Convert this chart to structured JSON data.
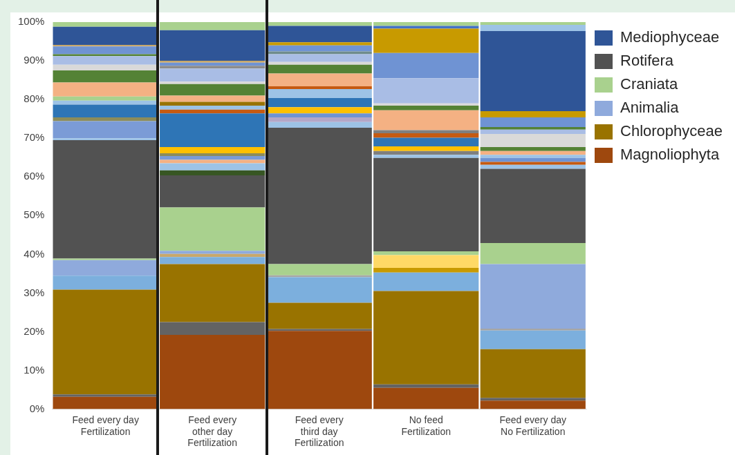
{
  "chart_data": {
    "type": "bar",
    "stacked": true,
    "legend": "right",
    "categories": [
      "Feed every day\nFertilization",
      "Feed every\nother day\nFertilization",
      "Feed every\nthird day\nFertilization",
      "No feed\nFertilization",
      "Feed every day\nNo Fertilization"
    ],
    "ylim": [
      0,
      100
    ],
    "yticks": [
      {
        "value": 0,
        "label": "0%"
      },
      {
        "value": 10,
        "label": "10%"
      },
      {
        "value": 20,
        "label": "20%"
      },
      {
        "value": 30,
        "label": "30%"
      },
      {
        "value": 40,
        "label": "40%"
      },
      {
        "value": 50,
        "label": "50%"
      },
      {
        "value": 60,
        "label": "60%"
      },
      {
        "value": 70,
        "label": "70%"
      },
      {
        "value": 80,
        "label": "80%"
      },
      {
        "value": 90,
        "label": "90%"
      },
      {
        "value": 100,
        "label": "100%"
      }
    ],
    "grid": false,
    "series": [
      {
        "name": "Magnoliophyta",
        "color": "#9e480e",
        "values": [
          3.2,
          19.2,
          20.2,
          5.5,
          2.2
        ]
      },
      {
        "color": "#636363",
        "values": [
          0.6,
          3.3,
          0.5,
          0.9,
          0.7
        ]
      },
      {
        "name": "Chlorophyceae",
        "color": "#997300",
        "values": [
          27.1,
          15.0,
          6.8,
          24.1,
          12.6
        ]
      },
      {
        "color": "#7cafdd",
        "values": [
          3.6,
          1.8,
          6.6,
          4.8,
          4.8
        ]
      },
      {
        "color": "#c9a86a",
        "values": [
          null,
          0.8,
          null,
          null,
          null
        ]
      },
      {
        "color": "#a5a5a5",
        "values": [
          null,
          null,
          0.5,
          null,
          0.5
        ]
      },
      {
        "color": "#c89a00",
        "values": [
          null,
          null,
          null,
          1.2,
          null
        ]
      },
      {
        "color": "#ffd966",
        "values": [
          null,
          null,
          null,
          3.3,
          null
        ]
      },
      {
        "name": "Animalia",
        "color": "#8faadc",
        "values": [
          4.0,
          0.8,
          null,
          null,
          16.7
        ]
      },
      {
        "name": "Craniata",
        "color": "#a9d18e",
        "values": [
          0.4,
          11.2,
          2.9,
          1.0,
          5.4
        ]
      },
      {
        "name": "Rotifera",
        "color": "#525252",
        "values": [
          30.6,
          8.3,
          35.2,
          24.1,
          19.2
        ]
      },
      {
        "color": "#9dc3e6",
        "values": [
          0.5,
          null,
          null,
          null,
          null
        ]
      },
      {
        "color": "#7b9bd6",
        "values": [
          4.4,
          null,
          null,
          null,
          null
        ]
      },
      {
        "color": "#8c8c5a",
        "values": [
          1.0,
          null,
          null,
          null,
          null
        ]
      },
      {
        "color": "#2e75b6",
        "values": [
          3.3,
          null,
          null,
          null,
          null
        ]
      },
      {
        "color": "#9dc3e6",
        "values": [
          1.0,
          null,
          null,
          null,
          null
        ]
      },
      {
        "color": "#a9d18e",
        "values": [
          1.1,
          null,
          null,
          null,
          null
        ]
      },
      {
        "color": "#f4b183",
        "values": [
          3.6,
          null,
          null,
          null,
          null
        ]
      },
      {
        "color": "#548235",
        "values": [
          3.1,
          null,
          null,
          null,
          null
        ]
      },
      {
        "color": "#d9d9d9",
        "values": [
          1.5,
          null,
          null,
          null,
          null
        ]
      },
      {
        "color": "#a9bde5",
        "values": [
          2.2,
          null,
          null,
          null,
          null
        ]
      },
      {
        "color": "#548235",
        "values": [
          0.5,
          null,
          null,
          null,
          null
        ]
      },
      {
        "color": "#6f93d3",
        "values": [
          2.0,
          null,
          null,
          null,
          null
        ]
      },
      {
        "color": "#c9a86a",
        "values": [
          0.4,
          null,
          null,
          null,
          null
        ]
      },
      {
        "color": "#375623",
        "values": [
          null,
          1.3,
          null,
          null,
          null
        ]
      },
      {
        "color": "#9dc3e6",
        "values": [
          null,
          1.8,
          null,
          null,
          null
        ]
      },
      {
        "color": "#f4b183",
        "values": [
          null,
          0.9,
          null,
          null,
          null
        ]
      },
      {
        "color": "#7b9bd6",
        "values": [
          null,
          1.0,
          null,
          null,
          null
        ]
      },
      {
        "color": "#8c8c5a",
        "values": [
          null,
          0.7,
          null,
          null,
          null
        ]
      },
      {
        "color": "#ffc000",
        "values": [
          null,
          1.6,
          null,
          null,
          null
        ]
      },
      {
        "color": "#2e75b6",
        "values": [
          null,
          8.7,
          null,
          null,
          null
        ]
      },
      {
        "color": "#c55a11",
        "values": [
          null,
          1.0,
          null,
          null,
          null
        ]
      },
      {
        "color": "#9dc3e6",
        "values": [
          null,
          1.0,
          null,
          null,
          null
        ]
      },
      {
        "color": "#997300",
        "values": [
          null,
          1.0,
          null,
          null,
          null
        ]
      },
      {
        "color": "#f4b183",
        "values": [
          null,
          1.6,
          null,
          null,
          null
        ]
      },
      {
        "color": "#548235",
        "values": [
          null,
          3.0,
          null,
          null,
          null
        ]
      },
      {
        "color": "#d9d9d9",
        "values": [
          null,
          0.6,
          null,
          null,
          null
        ]
      },
      {
        "color": "#a9bde5",
        "values": [
          null,
          3.4,
          null,
          null,
          null
        ]
      },
      {
        "color": "#8c8c8c",
        "values": [
          null,
          0.7,
          null,
          null,
          null
        ]
      },
      {
        "color": "#6f93d3",
        "values": [
          null,
          0.8,
          null,
          null,
          null
        ]
      },
      {
        "color": "#c9a86a",
        "values": [
          null,
          0.5,
          null,
          null,
          null
        ]
      },
      {
        "color": "#9dc3e6",
        "values": [
          null,
          null,
          1.5,
          null,
          null
        ]
      },
      {
        "color": "#b4a7c8",
        "values": [
          null,
          null,
          1.2,
          null,
          null
        ]
      },
      {
        "color": "#6f93d3",
        "values": [
          null,
          null,
          1.0,
          null,
          null
        ]
      },
      {
        "color": "#ffc000",
        "values": [
          null,
          null,
          1.6,
          null,
          null
        ]
      },
      {
        "color": "#2e75b6",
        "values": [
          null,
          null,
          2.4,
          null,
          null
        ]
      },
      {
        "color": "#9dc3e6",
        "values": [
          null,
          null,
          2.3,
          null,
          null
        ]
      },
      {
        "color": "#c55a11",
        "values": [
          null,
          null,
          0.7,
          null,
          null
        ]
      },
      {
        "color": "#f4b183",
        "values": [
          null,
          null,
          3.3,
          null,
          null
        ]
      },
      {
        "color": "#548235",
        "values": [
          null,
          null,
          2.3,
          null,
          null
        ]
      },
      {
        "color": "#d9d9d9",
        "values": [
          null,
          null,
          0.7,
          null,
          null
        ]
      },
      {
        "color": "#a9bde5",
        "values": [
          null,
          null,
          2.0,
          null,
          null
        ]
      },
      {
        "color": "#6f8c8c",
        "values": [
          null,
          null,
          0.7,
          null,
          null
        ]
      },
      {
        "color": "#6f93d3",
        "values": [
          null,
          null,
          1.6,
          null,
          null
        ]
      },
      {
        "color": "#c89a00",
        "values": [
          null,
          null,
          0.8,
          null,
          null
        ]
      },
      {
        "color": "#9dc3e6",
        "values": [
          null,
          null,
          null,
          0.8,
          null
        ]
      },
      {
        "color": "#7f7f7f",
        "values": [
          null,
          null,
          null,
          1.0,
          null
        ]
      },
      {
        "color": "#ffc000",
        "values": [
          null,
          null,
          null,
          1.2,
          null
        ]
      },
      {
        "color": "#2e75b6",
        "values": [
          null,
          null,
          null,
          2.2,
          null
        ]
      },
      {
        "color": "#c55a11",
        "values": [
          null,
          null,
          null,
          1.2,
          null
        ]
      },
      {
        "color": "#7f7f7f",
        "values": [
          null,
          null,
          null,
          0.8,
          null
        ]
      },
      {
        "color": "#f4b183",
        "values": [
          null,
          null,
          null,
          5.1,
          null
        ]
      },
      {
        "color": "#548235",
        "values": [
          null,
          null,
          null,
          1.2,
          null
        ]
      },
      {
        "color": "#d9d9d9",
        "values": [
          null,
          null,
          null,
          0.6,
          null
        ]
      },
      {
        "color": "#a9bde5",
        "values": [
          null,
          null,
          null,
          6.5,
          null
        ]
      },
      {
        "color": "#6f93d3",
        "values": [
          null,
          null,
          null,
          6.5,
          null
        ]
      },
      {
        "color": "#c89a00",
        "values": [
          null,
          null,
          null,
          6.3,
          null
        ]
      },
      {
        "color": "#4472c4",
        "values": [
          null,
          null,
          null,
          0.7,
          null
        ]
      },
      {
        "color": "#9dc3e6",
        "values": [
          null,
          null,
          null,
          null,
          1.0
        ]
      },
      {
        "color": "#c55a11",
        "values": [
          null,
          null,
          null,
          null,
          0.8
        ]
      },
      {
        "color": "#6f93d3",
        "values": [
          null,
          null,
          null,
          null,
          1.0
        ]
      },
      {
        "color": "#9dc3e6",
        "values": [
          null,
          null,
          null,
          null,
          0.8
        ]
      },
      {
        "color": "#f4b183",
        "values": [
          null,
          null,
          null,
          null,
          1.0
        ]
      },
      {
        "color": "#548235",
        "values": [
          null,
          null,
          null,
          null,
          1.0
        ]
      },
      {
        "color": "#d9d9d9",
        "values": [
          null,
          null,
          null,
          null,
          3.4
        ]
      },
      {
        "color": "#a9bde5",
        "values": [
          null,
          null,
          null,
          null,
          1.1
        ]
      },
      {
        "color": "#548235",
        "values": [
          null,
          null,
          null,
          null,
          0.7
        ]
      },
      {
        "color": "#6f93d3",
        "values": [
          null,
          null,
          null,
          null,
          2.5
        ]
      },
      {
        "color": "#c89a00",
        "values": [
          null,
          null,
          null,
          null,
          1.6
        ]
      },
      {
        "name": "Mediophyceae",
        "color": "#2f5597",
        "values": [
          4.7,
          7.9,
          4.2,
          null,
          20.7
        ]
      },
      {
        "color": "#9dc3e6",
        "values": [
          null,
          null,
          null,
          null,
          1.6
        ]
      },
      {
        "color": "#a9d18e",
        "values": [
          1.2,
          2.1,
          1.0,
          1.0,
          0.7
        ]
      }
    ]
  }
}
